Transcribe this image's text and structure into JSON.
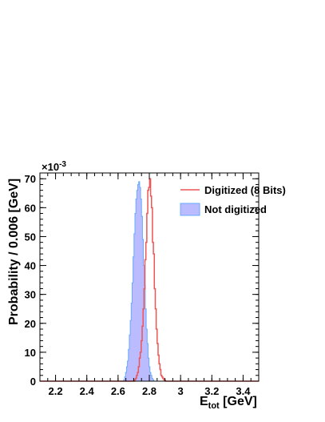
{
  "chart_data": {
    "type": "histogram",
    "title": "",
    "xlabel_main": "E",
    "xlabel_sub": "tot",
    "xlabel_unit": " [GeV]",
    "ylabel": "Probability / 0.006 [GeV]",
    "y_exponent_base": "×10",
    "y_exponent": "-3",
    "y_multiplier": 0.001,
    "xlim": [
      2.1,
      3.5
    ],
    "ylim": [
      0,
      72
    ],
    "x_ticks": [
      2.2,
      2.4,
      2.6,
      2.8,
      3.0,
      3.2,
      3.4
    ],
    "x_tick_labels": [
      "2.2",
      "2.4",
      "2.6",
      "2.8",
      "3",
      "3.2",
      "3.4"
    ],
    "y_ticks": [
      0,
      10,
      20,
      30,
      40,
      50,
      60,
      70
    ],
    "y_tick_labels": [
      "0",
      "10",
      "20",
      "30",
      "40",
      "50",
      "60",
      "70"
    ],
    "bin_width": 0.006,
    "grid": false,
    "legend_position": "top-right",
    "series": [
      {
        "name": "Digitized (8 Bits)",
        "style": "step-line",
        "color": "#ee5555",
        "x": [
          2.7,
          2.706,
          2.712,
          2.718,
          2.724,
          2.73,
          2.736,
          2.742,
          2.748,
          2.754,
          2.76,
          2.766,
          2.772,
          2.778,
          2.784,
          2.79,
          2.796,
          2.802,
          2.808,
          2.814,
          2.82,
          2.826,
          2.832,
          2.838,
          2.844,
          2.85,
          2.856,
          2.862,
          2.868,
          2.874,
          2.88,
          2.886,
          2.892,
          2.898,
          2.904
        ],
        "values": [
          0,
          0.5,
          1,
          2,
          3,
          5,
          8,
          10,
          14,
          19,
          25,
          32,
          42,
          48,
          58,
          66,
          67,
          70,
          64,
          60,
          48,
          44,
          32,
          25,
          18,
          13,
          9,
          6,
          4,
          2,
          1.5,
          1,
          0.5,
          0.3,
          0
        ]
      },
      {
        "name": "Not digitized",
        "style": "filled-step",
        "color": "#bbbbff",
        "edge_color": "#66aaff",
        "x": [
          2.63,
          2.636,
          2.642,
          2.648,
          2.654,
          2.66,
          2.666,
          2.672,
          2.678,
          2.684,
          2.69,
          2.696,
          2.702,
          2.708,
          2.714,
          2.72,
          2.726,
          2.732,
          2.738,
          2.744,
          2.75,
          2.756,
          2.762,
          2.768,
          2.774,
          2.78,
          2.786,
          2.792,
          2.798,
          2.804,
          2.81,
          2.816,
          2.822,
          2.828
        ],
        "values": [
          0,
          0.5,
          1.5,
          3,
          5,
          7,
          11,
          16,
          21,
          27,
          34,
          43,
          51,
          58,
          63,
          66,
          68,
          69,
          67,
          63,
          57,
          49,
          40,
          33,
          25,
          18,
          13,
          8,
          5,
          3,
          2,
          1,
          0.5,
          0
        ]
      }
    ]
  }
}
